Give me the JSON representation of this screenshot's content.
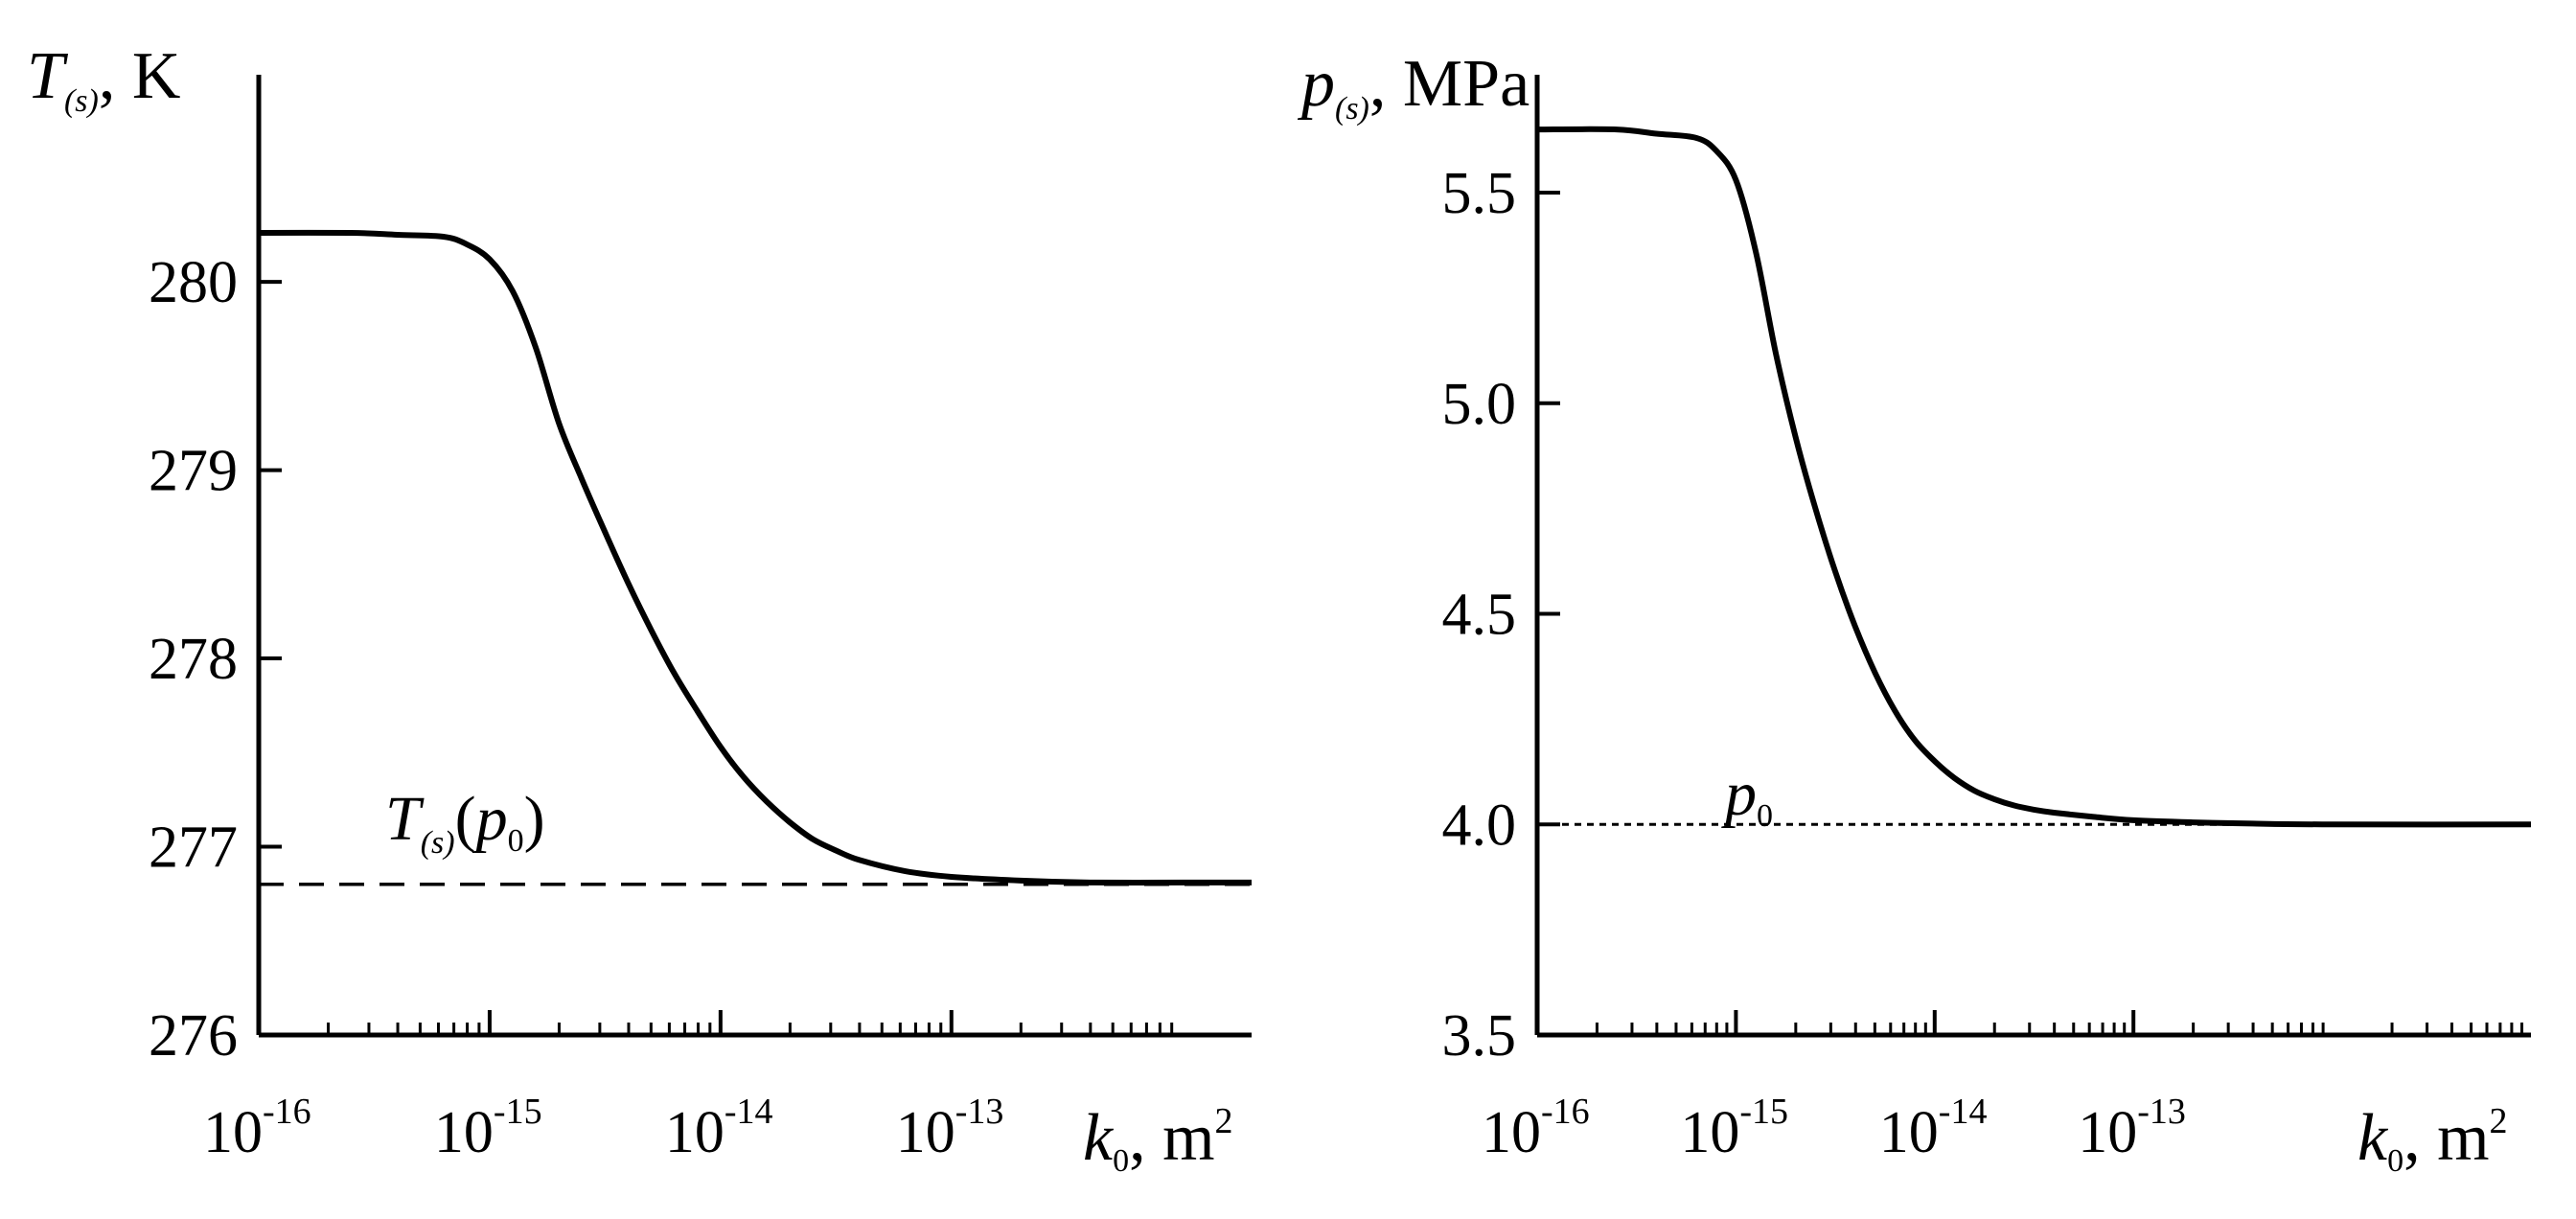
{
  "chart_data": [
    {
      "type": "line",
      "ylabel": {
        "symbol": "T",
        "subscript": "(s)",
        "unit": ", K"
      },
      "xlabel": {
        "symbol": "k",
        "subscript": "0",
        "unit": ", m",
        "unit_superscript": "2"
      },
      "xscale": "log",
      "xlim": [
        -16,
        -11.7
      ],
      "ylim": [
        276,
        281.1
      ],
      "xtick_labels": [
        {
          "value": -16,
          "base": "10",
          "exponent": "-16"
        },
        {
          "value": -15,
          "base": "10",
          "exponent": "-15"
        },
        {
          "value": -14,
          "base": "10",
          "exponent": "-14"
        },
        {
          "value": -13,
          "base": "10",
          "exponent": "-13"
        }
      ],
      "ytick_labels": [
        "276",
        "277",
        "278",
        "279",
        "280"
      ],
      "ytick_values": [
        276,
        277,
        278,
        279,
        280
      ],
      "series": [
        {
          "name": "T(s)",
          "style": "solid",
          "x_log10": [
            -16.0,
            -15.6,
            -15.4,
            -15.2,
            -15.1,
            -15.0,
            -14.9,
            -14.8,
            -14.7,
            -14.6,
            -14.5,
            -14.4,
            -14.3,
            -14.2,
            -14.1,
            -14.0,
            -13.9,
            -13.8,
            -13.7,
            -13.6,
            -13.5,
            -13.4,
            -13.2,
            -13.0,
            -12.7,
            -12.4,
            -12.0,
            -11.7
          ],
          "y": [
            280.26,
            280.26,
            280.25,
            280.24,
            280.2,
            280.12,
            279.95,
            279.65,
            279.25,
            278.95,
            278.67,
            278.4,
            278.15,
            277.92,
            277.72,
            277.53,
            277.37,
            277.24,
            277.13,
            277.04,
            276.98,
            276.93,
            276.87,
            276.84,
            276.82,
            276.81,
            276.81,
            276.81
          ]
        },
        {
          "name": "T(s)(p0)",
          "style": "dashed",
          "x_log10": [
            -16.0,
            -11.7
          ],
          "y": [
            276.8,
            276.8
          ]
        }
      ],
      "annotation": {
        "symbol": "T",
        "subscript": "(s)",
        "open": "(",
        "arg_symbol": "p",
        "arg_subscript": "0",
        "close": ")"
      }
    },
    {
      "type": "line",
      "ylabel": {
        "symbol": "p",
        "subscript": "(s)",
        "unit": ", MPa"
      },
      "xlabel": {
        "symbol": "k",
        "subscript": "0",
        "unit": ", m",
        "unit_superscript": "2"
      },
      "xscale": "log",
      "xlim": [
        -16,
        -11
      ],
      "ylim": [
        3.5,
        5.78
      ],
      "xtick_labels": [
        {
          "value": -16,
          "base": "10",
          "exponent": "-16"
        },
        {
          "value": -15,
          "base": "10",
          "exponent": "-15"
        },
        {
          "value": -14,
          "base": "10",
          "exponent": "-14"
        },
        {
          "value": -13,
          "base": "10",
          "exponent": "-13"
        }
      ],
      "ytick_labels": [
        "3.5",
        "4.0",
        "4.5",
        "5.0",
        "5.5"
      ],
      "ytick_values": [
        3.5,
        4.0,
        4.5,
        5.0,
        5.5
      ],
      "series": [
        {
          "name": "p(s)",
          "style": "solid",
          "x_log10": [
            -16.0,
            -15.6,
            -15.4,
            -15.2,
            -15.1,
            -15.0,
            -14.9,
            -14.8,
            -14.7,
            -14.6,
            -14.5,
            -14.4,
            -14.3,
            -14.2,
            -14.1,
            -14.0,
            -13.9,
            -13.8,
            -13.7,
            -13.6,
            -13.5,
            -13.4,
            -13.2,
            -13.0,
            -12.7,
            -12.4,
            -12.0,
            -11.0
          ],
          "y": [
            5.65,
            5.65,
            5.64,
            5.63,
            5.6,
            5.53,
            5.36,
            5.12,
            4.92,
            4.75,
            4.6,
            4.47,
            4.36,
            4.27,
            4.2,
            4.15,
            4.11,
            4.08,
            4.06,
            4.045,
            4.035,
            4.028,
            4.018,
            4.01,
            4.005,
            4.002,
            4.0,
            4.0
          ]
        },
        {
          "name": "p0",
          "style": "dotted",
          "x_log10": [
            -16.0,
            -11.0
          ],
          "y": [
            4.0,
            4.0
          ]
        }
      ],
      "annotation": {
        "symbol": "p",
        "subscript": "0"
      }
    }
  ]
}
